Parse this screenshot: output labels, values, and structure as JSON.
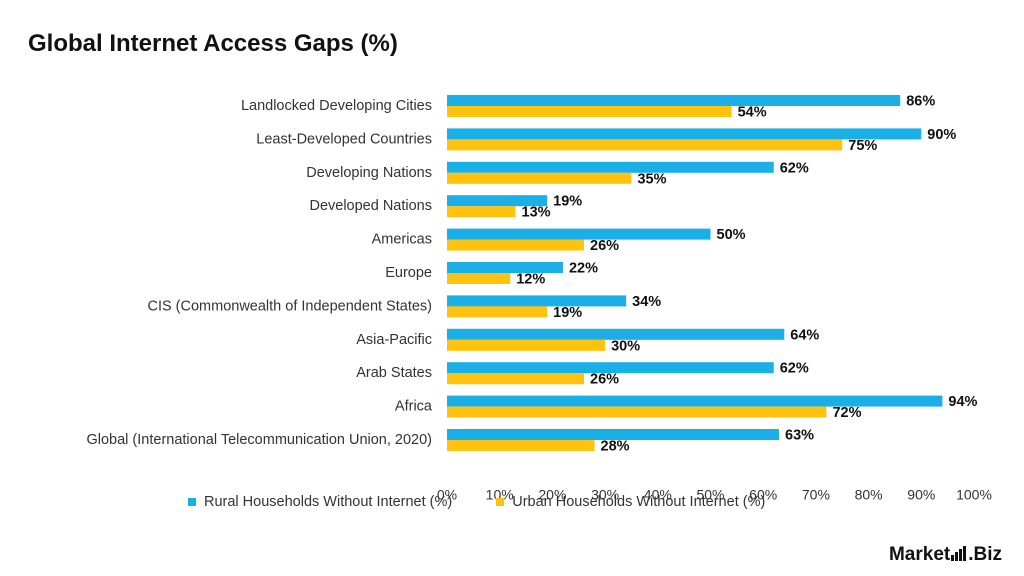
{
  "title": "Global Internet Access Gaps (%)",
  "logo": {
    "text_left": "Market",
    "text_right": ".Biz"
  },
  "colors": {
    "rural": "#1AAFE6",
    "urban": "#FFC20E"
  },
  "chart_data": {
    "type": "bar",
    "orientation": "horizontal",
    "title": "Global Internet Access Gaps (%)",
    "categories": [
      "Landlocked Developing Cities",
      "Least-Developed Countries",
      "Developing Nations",
      "Developed Nations",
      "Americas",
      "Europe",
      "CIS (Commonwealth of Independent States)",
      "Asia-Pacific",
      "Arab States",
      "Africa",
      "Global (International Telecommunication Union, 2020)"
    ],
    "series": [
      {
        "name": "Rural Households Without Internet (%)",
        "values": [
          86,
          90,
          62,
          19,
          50,
          22,
          34,
          64,
          62,
          94,
          63
        ]
      },
      {
        "name": "Urban Households Without Internet (%)",
        "values": [
          54,
          75,
          35,
          13,
          26,
          12,
          19,
          30,
          26,
          72,
          28
        ]
      }
    ],
    "xlim": [
      0,
      100
    ],
    "ticks": [
      "0%",
      "10%",
      "20%",
      "30%",
      "40%",
      "50%",
      "60%",
      "70%",
      "80%",
      "90%",
      "100%"
    ],
    "value_suffix": "%",
    "grid": false,
    "legend_position": "bottom"
  }
}
